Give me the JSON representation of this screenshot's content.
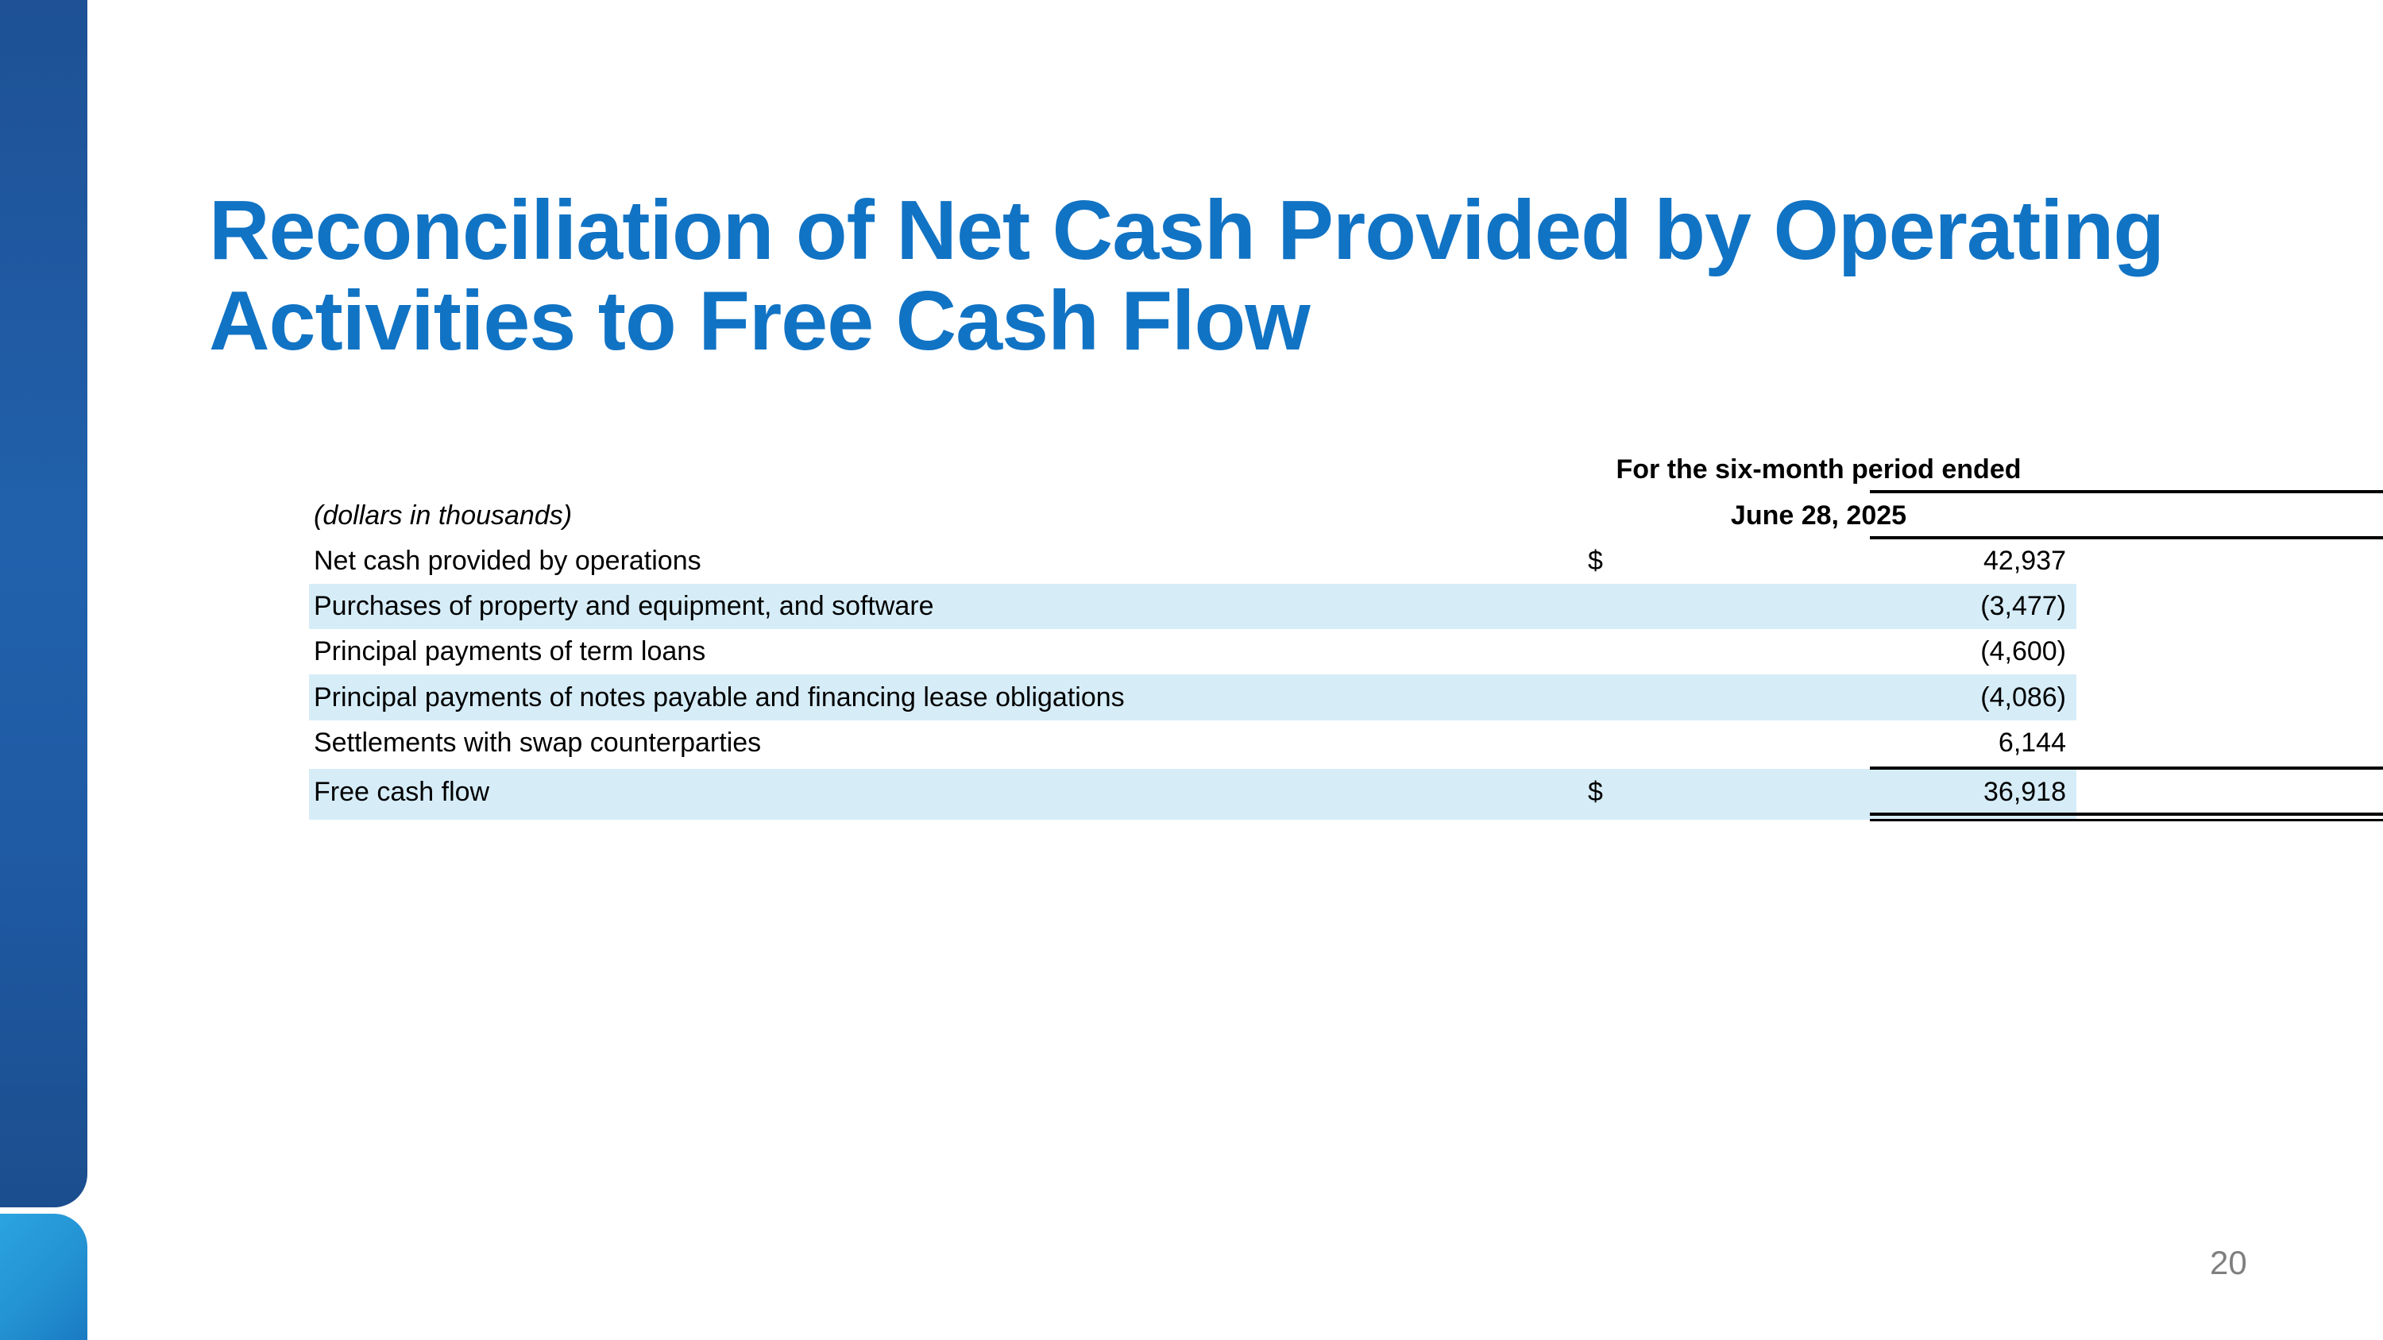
{
  "slide": {
    "title": "Reconciliation of Net Cash Provided by Operating Activities to Free Cash Flow",
    "page_number": "20"
  },
  "table": {
    "period_header": "For the six-month period ended",
    "date_header": "June 28, 2025",
    "units_note": "(dollars in thousands)",
    "rows": [
      {
        "label": "Net cash provided by operations",
        "currency": "$",
        "value": "42,937"
      },
      {
        "label": "Purchases of property and equipment, and software",
        "currency": "",
        "value": "(3,477)"
      },
      {
        "label": "Principal payments of term loans",
        "currency": "",
        "value": "(4,600)"
      },
      {
        "label": "Principal payments of notes payable and financing lease obligations",
        "currency": "",
        "value": "(4,086)"
      },
      {
        "label": "Settlements with swap counterparties",
        "currency": "",
        "value": "6,144"
      },
      {
        "label": "Free cash flow",
        "currency": "$",
        "value": "36,918"
      }
    ]
  },
  "colors": {
    "title_blue": "#1173c4",
    "row_highlight": "#d6edf8",
    "sidebar_top_gradient_start": "#1e5195",
    "sidebar_top_gradient_mid": "#2161ac",
    "sidebar_top_gradient_end": "#1b4e8e",
    "sidebar_bottom_gradient_start": "#2ba4e0",
    "sidebar_bottom_gradient_end": "#1a7ac2",
    "rule_black": "#000000",
    "page_number_gray": "#7f7f7f"
  }
}
